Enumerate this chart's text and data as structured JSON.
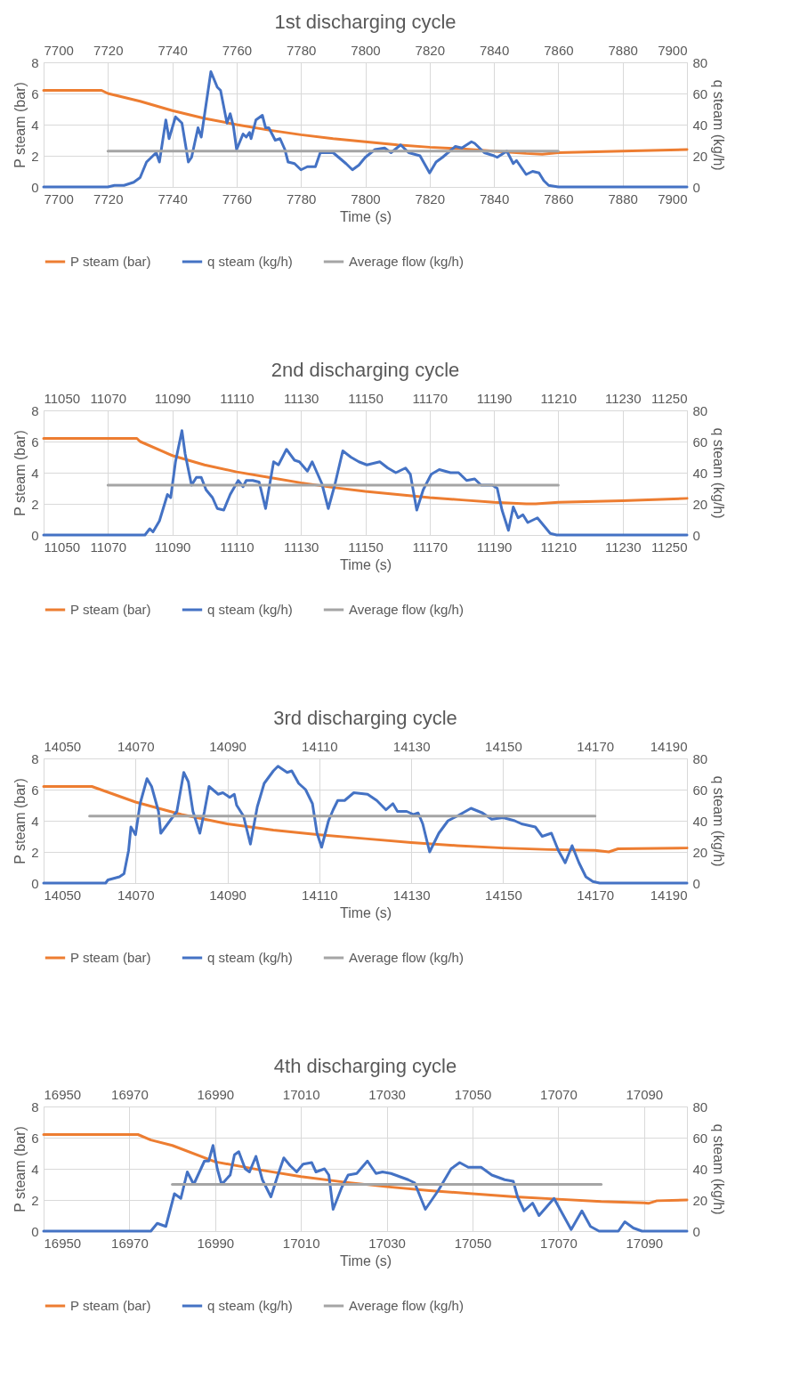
{
  "chart_data": [
    {
      "type": "line",
      "title": "1st discharging cycle",
      "xlabel": "Time (s)",
      "ylabel": "P steam (bar)",
      "y2label": "q steam (kg/h)",
      "xlim": [
        7700,
        7900
      ],
      "xticks": [
        7700,
        7720,
        7740,
        7760,
        7780,
        7800,
        7820,
        7840,
        7860,
        7880,
        7900
      ],
      "x2lim": [
        7700,
        7900
      ],
      "x2ticks": [
        7700,
        7720,
        7740,
        7760,
        7780,
        7800,
        7820,
        7840,
        7860,
        7880,
        7900
      ],
      "ylim": [
        0,
        8
      ],
      "yticks": [
        0,
        2,
        4,
        6,
        8
      ],
      "y2lim": [
        0,
        80
      ],
      "y2ticks": [
        0,
        20,
        40,
        60,
        80
      ],
      "grid": true,
      "legend": "bottom",
      "series": [
        {
          "name": "P steam (bar)",
          "color": "#ed7d31",
          "x": [
            7700,
            7718,
            7720,
            7730,
            7740,
            7750,
            7760,
            7770,
            7780,
            7790,
            7800,
            7810,
            7820,
            7830,
            7840,
            7850,
            7855,
            7860,
            7880,
            7900
          ],
          "values": [
            6.2,
            6.2,
            6.0,
            5.5,
            4.9,
            4.4,
            4.0,
            3.65,
            3.35,
            3.1,
            2.9,
            2.7,
            2.55,
            2.45,
            2.3,
            2.15,
            2.1,
            2.2,
            2.3,
            2.4
          ]
        },
        {
          "name": "q steam (kg/h)",
          "color": "#4472c4",
          "axis": "y2",
          "x": [
            7700,
            7720,
            7722,
            7725,
            7728,
            7730,
            7732,
            7735,
            7736,
            7738,
            7739,
            7741,
            7743,
            7745,
            7746,
            7748,
            7749,
            7752,
            7754,
            7755,
            7757,
            7758,
            7759,
            7760,
            7762,
            7763,
            7764,
            7764.5,
            7766,
            7768,
            7769,
            7770,
            7772,
            7773.5,
            7775,
            7776,
            7778,
            7780,
            7782,
            7784.5,
            7786,
            7788,
            7790,
            7794,
            7796,
            7798,
            7800,
            7803,
            7806,
            7808,
            7811,
            7813.5,
            7817,
            7820,
            7822,
            7824,
            7828,
            7830,
            7833,
            7834,
            7837,
            7840,
            7841,
            7844,
            7846,
            7847,
            7850,
            7852,
            7854,
            7855.5,
            7857,
            7860,
            7900
          ],
          "values": [
            0,
            0,
            1,
            1,
            3,
            6,
            16,
            22,
            16,
            43,
            31,
            45,
            41,
            16,
            19,
            38,
            32,
            74,
            64,
            62,
            41,
            47,
            39,
            24,
            34,
            32,
            35,
            31,
            43,
            46,
            38,
            38,
            30,
            31,
            24,
            16,
            15,
            11,
            13,
            13,
            22,
            22,
            22,
            15,
            11,
            14,
            19,
            24,
            25,
            22,
            27,
            22,
            20,
            9,
            16,
            19,
            26,
            25,
            29,
            28,
            22,
            20,
            19,
            23,
            15,
            17,
            8,
            10,
            9,
            4,
            1,
            0,
            0
          ]
        },
        {
          "name": "Average flow (kg/h)",
          "color": "#a5a5a5",
          "axis": "y2",
          "x": [
            7720,
            7860
          ],
          "values": [
            23,
            23
          ]
        }
      ]
    },
    {
      "type": "line",
      "title": "2nd discharging cycle",
      "xlabel": "Time (s)",
      "ylabel": "P steam (bar)",
      "y2label": "q steam (kg/h)",
      "xlim": [
        11050,
        11250
      ],
      "xticks": [
        11050,
        11070,
        11090,
        11110,
        11130,
        11150,
        11170,
        11190,
        11210,
        11230,
        11250
      ],
      "x2lim": [
        11050,
        11250
      ],
      "x2ticks": [
        11050,
        11070,
        11090,
        11110,
        11130,
        11150,
        11170,
        11190,
        11210,
        11230,
        11250
      ],
      "ylim": [
        0,
        8
      ],
      "yticks": [
        0,
        2,
        4,
        6,
        8
      ],
      "y2lim": [
        0,
        80
      ],
      "y2ticks": [
        0,
        20,
        40,
        60,
        80
      ],
      "grid": true,
      "legend": "bottom",
      "series": [
        {
          "name": "P steam (bar)",
          "color": "#ed7d31",
          "x": [
            11050,
            11079,
            11080,
            11090,
            11100,
            11110,
            11120,
            11130,
            11140,
            11150,
            11160,
            11170,
            11180,
            11190,
            11200,
            11203,
            11210,
            11230,
            11250
          ],
          "values": [
            6.2,
            6.2,
            6.0,
            5.1,
            4.5,
            4.05,
            3.7,
            3.35,
            3.05,
            2.8,
            2.6,
            2.4,
            2.25,
            2.1,
            2.0,
            2.0,
            2.1,
            2.2,
            2.35
          ]
        },
        {
          "name": "q steam (kg/h)",
          "color": "#4472c4",
          "axis": "y2",
          "x": [
            11050,
            11081.5,
            11083,
            11084,
            11086,
            11088.5,
            11089.5,
            11091,
            11093,
            11094,
            11096,
            11097.5,
            11099,
            11100.5,
            11102.5,
            11104,
            11106,
            11108,
            11110.5,
            11112,
            11113,
            11115,
            11117,
            11119,
            11121.5,
            11123,
            11125.5,
            11128,
            11129.5,
            11132,
            11133.5,
            11135,
            11136.5,
            11138.5,
            11140.5,
            11143,
            11145.5,
            11148,
            11150.5,
            11154.5,
            11157,
            11159.5,
            11162.5,
            11164,
            11166,
            11168,
            11170.5,
            11173,
            11176.5,
            11179,
            11181.5,
            11184,
            11186,
            11189.5,
            11191,
            11192.5,
            11194.5,
            11196,
            11197.5,
            11199,
            11200.5,
            11203.5,
            11205.5,
            11207.5,
            11209.5,
            11250
          ],
          "values": [
            0,
            0,
            4,
            2,
            9,
            26,
            24,
            47,
            67,
            52,
            32,
            37,
            37,
            29,
            24,
            17,
            16,
            26,
            35,
            31,
            35,
            35,
            34,
            17,
            47,
            45,
            55,
            48,
            47,
            41,
            47,
            40,
            33,
            17,
            32,
            54,
            50,
            47,
            45,
            47,
            43,
            40,
            43,
            39,
            16,
            29,
            39,
            42,
            40,
            40,
            35,
            36,
            32,
            32,
            30,
            16,
            3,
            18,
            11,
            13,
            8,
            11,
            6,
            1,
            0,
            0
          ]
        },
        {
          "name": "Average flow (kg/h)",
          "color": "#a5a5a5",
          "axis": "y2",
          "x": [
            11070,
            11210
          ],
          "values": [
            32,
            32
          ]
        }
      ]
    },
    {
      "type": "line",
      "title": "3rd discharging cycle",
      "xlabel": "Time (s)",
      "ylabel": "P steam (bar)",
      "y2label": "q steam (kg/h)",
      "xlim": [
        14050,
        14190
      ],
      "xticks": [
        14050,
        14070,
        14090,
        14110,
        14130,
        14150,
        14170,
        14190
      ],
      "x2lim": [
        14050,
        14190
      ],
      "x2ticks": [
        14050,
        14070,
        14090,
        14110,
        14130,
        14150,
        14170,
        14190
      ],
      "ylim": [
        0,
        8
      ],
      "yticks": [
        0,
        2,
        4,
        6,
        8
      ],
      "y2lim": [
        0,
        80
      ],
      "y2ticks": [
        0,
        20,
        40,
        60,
        80
      ],
      "grid": true,
      "legend": "bottom",
      "series": [
        {
          "name": "P steam (bar)",
          "color": "#ed7d31",
          "x": [
            14050,
            14060.5,
            14070,
            14080,
            14090,
            14100,
            14110,
            14120,
            14130,
            14140,
            14150,
            14160,
            14170,
            14173,
            14175,
            14190
          ],
          "values": [
            6.2,
            6.2,
            5.2,
            4.4,
            3.8,
            3.4,
            3.1,
            2.85,
            2.6,
            2.4,
            2.25,
            2.15,
            2.1,
            2.0,
            2.2,
            2.25
          ]
        },
        {
          "name": "q steam (kg/h)",
          "color": "#4472c4",
          "axis": "y2",
          "x": [
            14050,
            14063.5,
            14064,
            14066.5,
            14067.5,
            14068.5,
            14069,
            14070,
            14071,
            14072.5,
            14073.5,
            14075,
            14075.5,
            14077.5,
            14079,
            14080.5,
            14081.5,
            14082.5,
            14084,
            14085,
            14086,
            14088,
            14089,
            14090.5,
            14091.5,
            14092,
            14093.5,
            14095,
            14096.5,
            14098,
            14100,
            14101,
            14103,
            14104,
            14105.5,
            14107,
            14108.5,
            14109.5,
            14110.5,
            14112,
            14113,
            14114,
            14115.5,
            14117.5,
            14120.5,
            14122.5,
            14124.5,
            14126,
            14127,
            14129,
            14130.5,
            14131.5,
            14132.5,
            14134,
            14136,
            14138,
            14140,
            14143,
            14145.5,
            14147.5,
            14150,
            14152.5,
            14154,
            14157,
            14158.5,
            14160.5,
            14162,
            14163.5,
            14165,
            14166.5,
            14168,
            14169.5,
            14171,
            14190
          ],
          "values": [
            0,
            0,
            2,
            4,
            6,
            21,
            36,
            31,
            51,
            67,
            62,
            46,
            32,
            40,
            46,
            71,
            65,
            46,
            32,
            46,
            62,
            57,
            58,
            55,
            57,
            50,
            43,
            25,
            49,
            64,
            72,
            75,
            71,
            72,
            64,
            60,
            51,
            32,
            23,
            40,
            47,
            53,
            53,
            58,
            57,
            53,
            47,
            51,
            46,
            46,
            44,
            45,
            38,
            20,
            32,
            40,
            43,
            48,
            45,
            41,
            42,
            40,
            38,
            36,
            30,
            32,
            21,
            13,
            24,
            13,
            4,
            1,
            0,
            0
          ]
        },
        {
          "name": "Average flow (kg/h)",
          "color": "#a5a5a5",
          "axis": "y2",
          "x": [
            14060,
            14170
          ],
          "values": [
            43,
            43
          ]
        }
      ]
    },
    {
      "type": "line",
      "title": "4th discharging cycle",
      "xlabel": "Time (s)",
      "ylabel": "P steam (bar)",
      "y2label": "q steam (kg/h)",
      "xlim": [
        16950,
        17100
      ],
      "xticks": [
        16950,
        16970,
        16990,
        17010,
        17030,
        17050,
        17070,
        17090
      ],
      "x2lim": [
        16950,
        17100
      ],
      "x2ticks": [
        16950,
        16970,
        16990,
        17010,
        17030,
        17050,
        17070,
        17090
      ],
      "ylim": [
        0,
        8
      ],
      "yticks": [
        0,
        2,
        4,
        6,
        8
      ],
      "y2lim": [
        0,
        80
      ],
      "y2ticks": [
        0,
        20,
        40,
        60,
        80
      ],
      "grid": true,
      "legend": "bottom",
      "series": [
        {
          "name": "P steam (bar)",
          "color": "#ed7d31",
          "x": [
            16950,
            16972,
            16975,
            16980,
            16990,
            17000,
            17010,
            17020,
            17030,
            17040,
            17050,
            17060,
            17070,
            17080,
            17090,
            17091,
            17093,
            17100
          ],
          "values": [
            6.2,
            6.2,
            5.85,
            5.5,
            4.45,
            3.95,
            3.5,
            3.15,
            2.85,
            2.6,
            2.4,
            2.2,
            2.05,
            1.9,
            1.82,
            1.78,
            1.95,
            2.0
          ]
        },
        {
          "name": "q steam (kg/h)",
          "color": "#4472c4",
          "axis": "y2",
          "x": [
            16950,
            16975,
            16976.5,
            16978.5,
            16980.5,
            16982,
            16983.5,
            16985,
            16987.5,
            16988.5,
            16989.5,
            16990.5,
            16991.5,
            16993.5,
            16994.5,
            16995.5,
            16997,
            16998,
            16999.5,
            17001,
            17003,
            17004.5,
            17006,
            17007.5,
            17009,
            17010.5,
            17012.5,
            17013.5,
            17015.5,
            17016.5,
            17017.5,
            17019.5,
            17021,
            17023,
            17025.5,
            17027.5,
            17029,
            17031,
            17033,
            17035,
            17036.5,
            17039,
            17042,
            17045,
            17047,
            17049,
            17052,
            17054.5,
            17057.5,
            17059.5,
            17060.5,
            17062,
            17064,
            17065.5,
            17069,
            17071,
            17073,
            17075.5,
            17077.5,
            17079.5,
            17084,
            17085.5,
            17087.5,
            17089.5,
            17100
          ],
          "values": [
            0,
            0,
            5,
            3,
            24,
            21,
            38,
            30,
            45,
            45,
            55,
            40,
            30,
            36,
            49,
            51,
            40,
            38,
            48,
            33,
            22,
            35,
            47,
            42,
            38,
            43,
            44,
            38,
            40,
            36,
            14,
            28,
            36,
            37,
            45,
            37,
            38,
            37,
            35,
            33,
            31,
            14,
            26,
            40,
            44,
            41,
            41,
            36,
            33,
            32,
            22,
            13,
            18,
            10,
            21,
            11,
            1,
            13,
            3,
            0,
            0,
            6,
            2,
            0,
            0
          ]
        },
        {
          "name": "Average flow (kg/h)",
          "color": "#a5a5a5",
          "axis": "y2",
          "x": [
            16980,
            17080
          ],
          "values": [
            30,
            30
          ]
        }
      ]
    }
  ]
}
